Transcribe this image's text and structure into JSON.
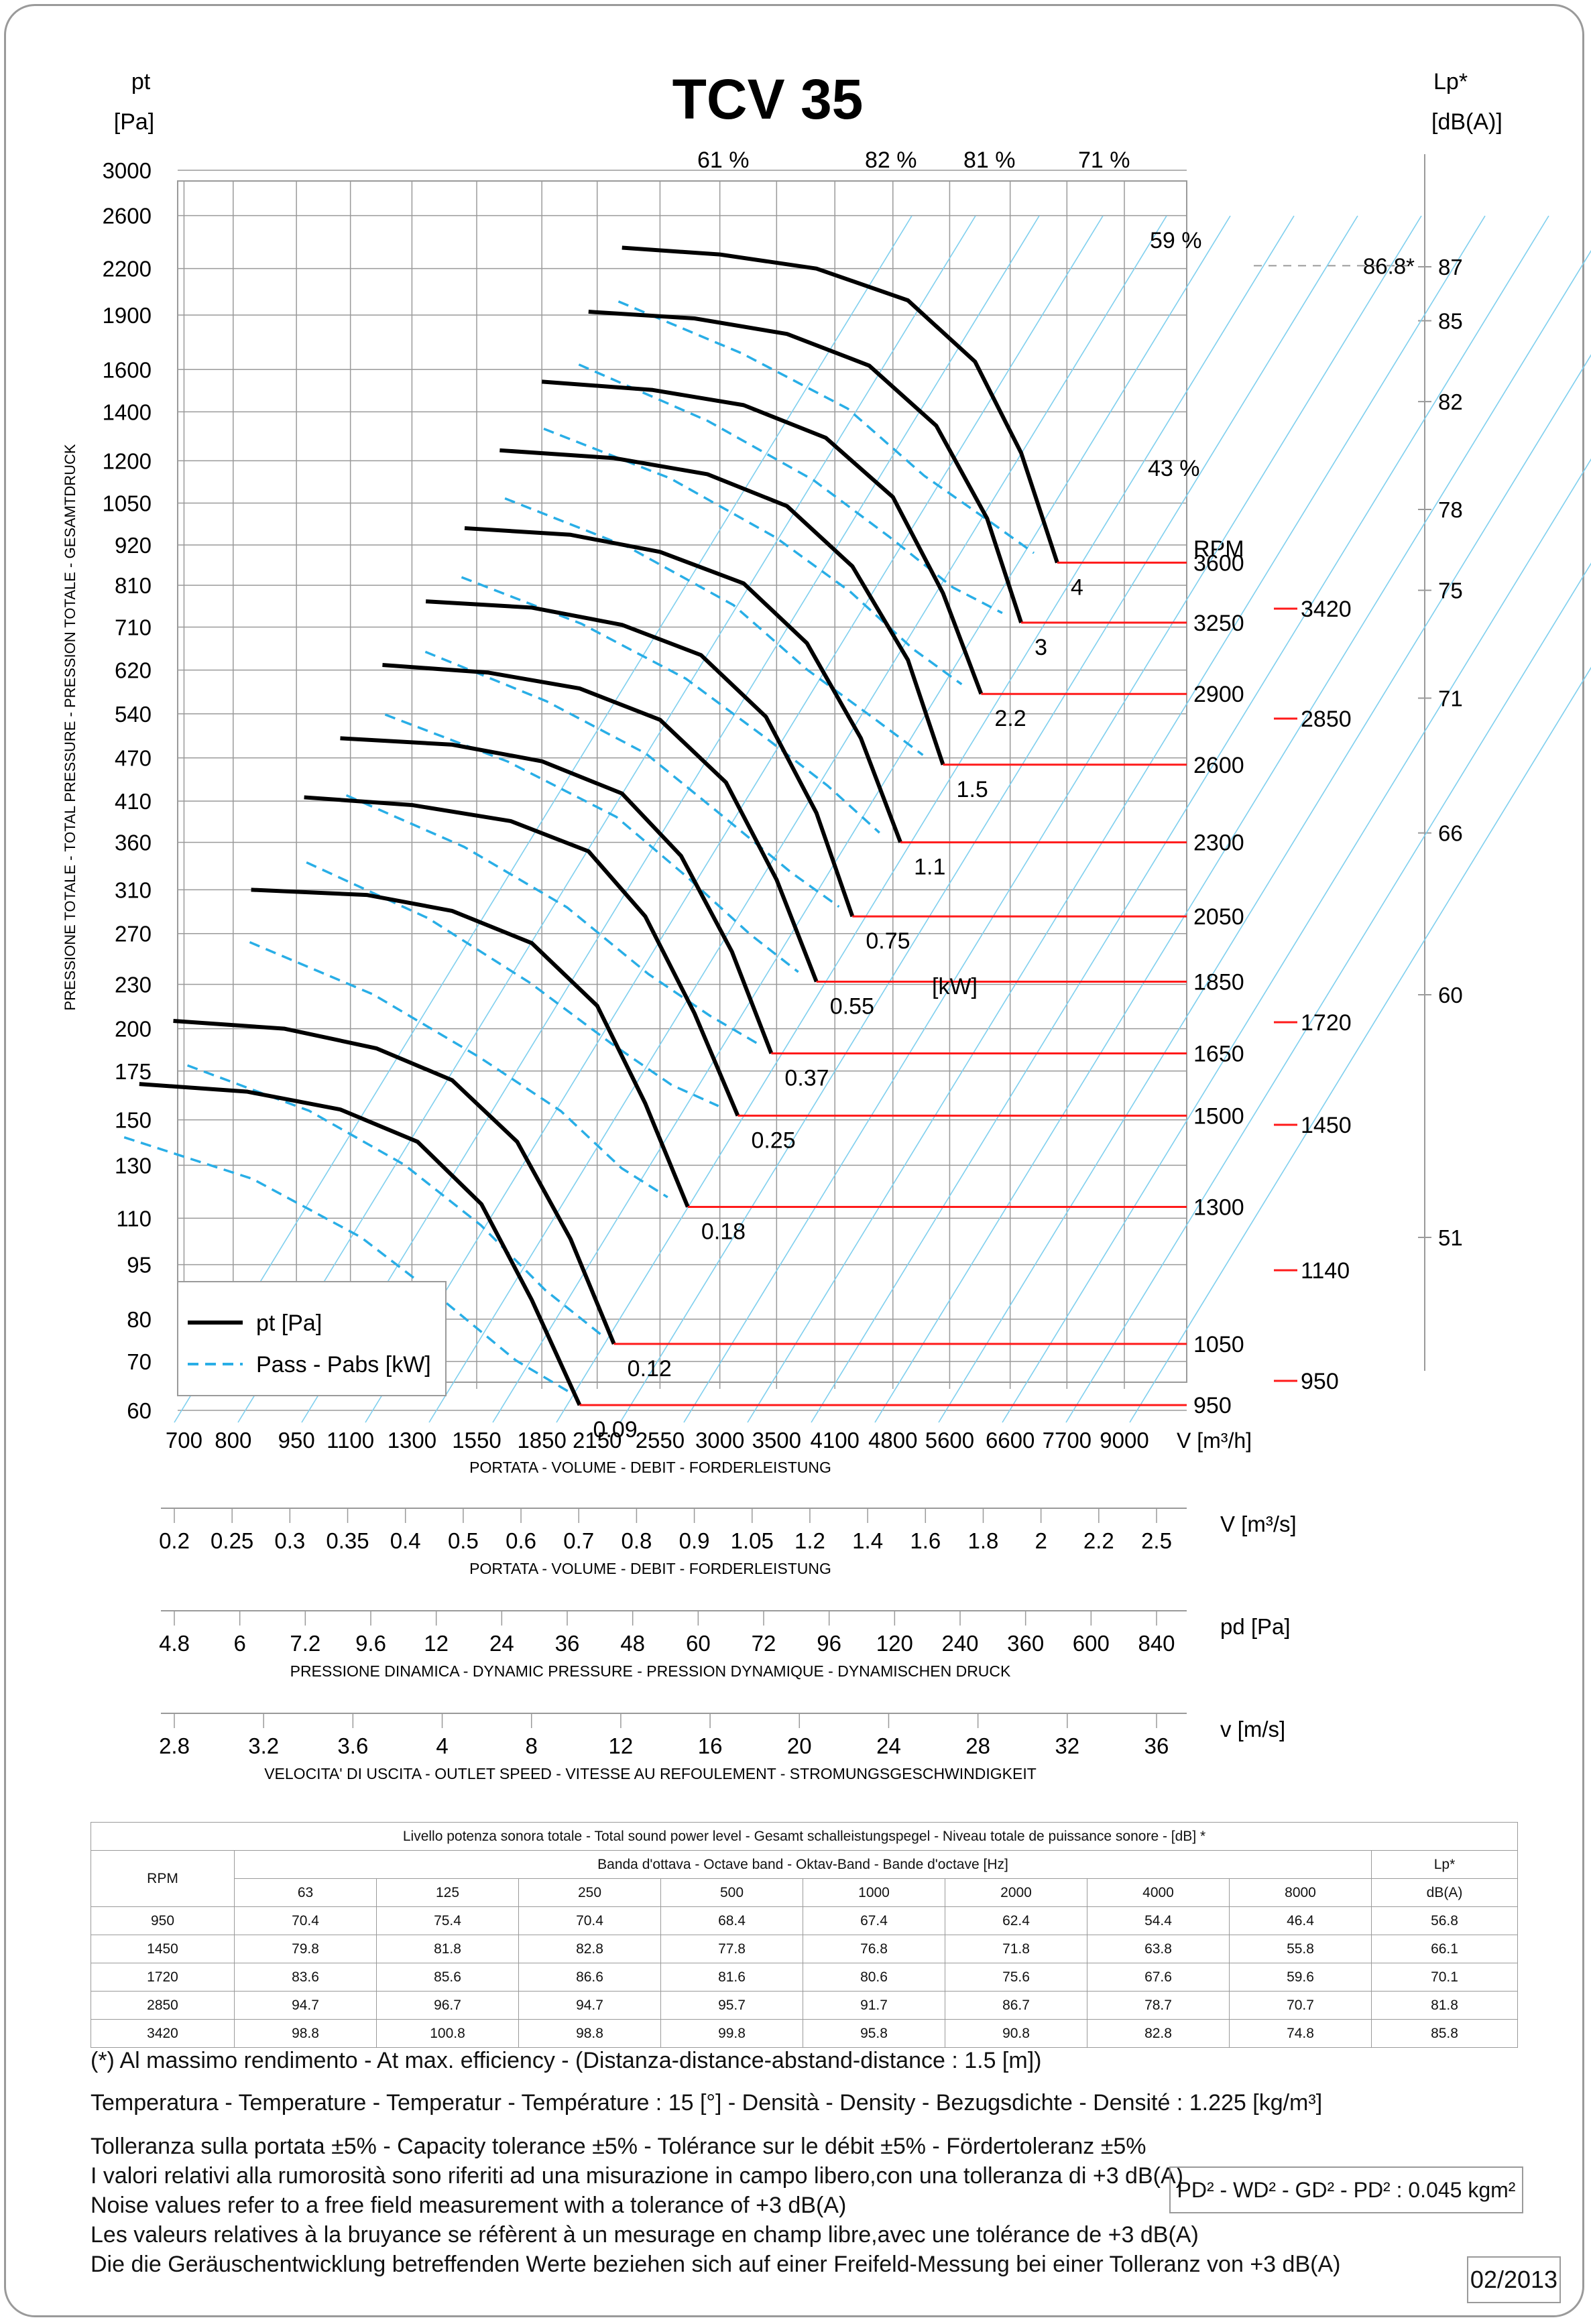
{
  "chart_data": {
    "type": "line",
    "title": "TCV 35",
    "y_axis": {
      "label": "pt",
      "unit": "[Pa]",
      "scale": "log",
      "ticks": [
        "3000",
        "2600",
        "2200",
        "1900",
        "1600",
        "1400",
        "1200",
        "1050",
        "920",
        "810",
        "710",
        "620",
        "540",
        "470",
        "410",
        "360",
        "310",
        "270",
        "230",
        "200",
        "175",
        "150",
        "130",
        "110",
        "95",
        "80",
        "70",
        "60"
      ]
    },
    "y_axis_side_label": "PRESSIONE TOTALE - TOTAL PRESSURE - PRESSION TOTALE - GESAMTDRUCK",
    "x_axis": {
      "label": "V [m³/h]",
      "scale": "log",
      "ticks": [
        "700",
        "800",
        "950",
        "1100",
        "1300",
        "1550",
        "1850",
        "2150",
        "2550",
        "3000",
        "3500",
        "4100",
        "4800",
        "5600",
        "6600",
        "7700",
        "9000"
      ],
      "caption": "PORTATA - VOLUME - DEBIT - FORDERLEISTUNG"
    },
    "lp_axis": {
      "label": "Lp*",
      "unit": "[dB(A)]",
      "ticks": [
        "87",
        "85",
        "82",
        "78",
        "75",
        "71",
        "66",
        "60",
        "51"
      ],
      "max_mark": "86.8*"
    },
    "efficiency_labels": [
      "61 %",
      "82 %",
      "81 %",
      "71 %",
      "59 %",
      "43 %"
    ],
    "rpm_header": "RPM",
    "rpm_curves": [
      "3600",
      "3250",
      "2900",
      "2600",
      "2300",
      "2050",
      "1850",
      "1650",
      "1500",
      "1300",
      "1050",
      "950"
    ],
    "rpm_sound_levels": [
      "3420",
      "2850",
      "1720",
      "1450",
      "1140",
      "950"
    ],
    "power_labels": [
      "4",
      "3",
      "2.2",
      "1.5",
      "1.1",
      "0.75",
      "0.55",
      "[kW]",
      "0.37",
      "0.25",
      "0.18",
      "0.12",
      "0.09"
    ],
    "curves": [
      {
        "rpm": 3600,
        "kw": "4",
        "pt": [
          [
            2300,
            2350
          ],
          [
            3000,
            2300
          ],
          [
            3900,
            2200
          ],
          [
            5000,
            1990
          ],
          [
            6000,
            1640
          ],
          [
            6800,
            1230
          ],
          [
            7500,
            870
          ]
        ],
        "pw": [
          [
            2450,
            1.8
          ],
          [
            3400,
            2.35
          ],
          [
            4500,
            2.85
          ],
          [
            5500,
            3.4
          ],
          [
            6500,
            3.75
          ],
          [
            7300,
            4.0
          ]
        ]
      },
      {
        "rpm": 3250,
        "kw": "3",
        "pt": [
          [
            2100,
            1920
          ],
          [
            2800,
            1880
          ],
          [
            3600,
            1790
          ],
          [
            4500,
            1620
          ],
          [
            5400,
            1340
          ],
          [
            6200,
            1000
          ],
          [
            6800,
            720
          ]
        ],
        "pw": [
          [
            2200,
            1.35
          ],
          [
            3100,
            1.8
          ],
          [
            4100,
            2.2
          ],
          [
            5000,
            2.55
          ],
          [
            5900,
            2.85
          ],
          [
            6700,
            3.0
          ]
        ]
      },
      {
        "rpm": 2900,
        "kw": "2.2",
        "pt": [
          [
            1850,
            1540
          ],
          [
            2500,
            1500
          ],
          [
            3200,
            1430
          ],
          [
            4000,
            1290
          ],
          [
            4800,
            1070
          ],
          [
            5500,
            790
          ],
          [
            6100,
            575
          ]
        ],
        "pw": [
          [
            2000,
            0.95
          ],
          [
            2800,
            1.25
          ],
          [
            3700,
            1.55
          ],
          [
            4500,
            1.8
          ],
          [
            5300,
            2.05
          ],
          [
            6000,
            2.2
          ]
        ]
      },
      {
        "rpm": 2600,
        "kw": "1.5",
        "pt": [
          [
            1650,
            1240
          ],
          [
            2250,
            1210
          ],
          [
            2900,
            1150
          ],
          [
            3600,
            1040
          ],
          [
            4300,
            860
          ],
          [
            5000,
            640
          ],
          [
            5500,
            460
          ]
        ],
        "pw": [
          [
            1800,
            0.65
          ],
          [
            2500,
            0.85
          ],
          [
            3300,
            1.05
          ],
          [
            4000,
            1.25
          ],
          [
            4800,
            1.4
          ],
          [
            5400,
            1.5
          ]
        ]
      },
      {
        "rpm": 2300,
        "kw": "1.1",
        "pt": [
          [
            1500,
            970
          ],
          [
            2000,
            950
          ],
          [
            2550,
            900
          ],
          [
            3200,
            815
          ],
          [
            3800,
            675
          ],
          [
            4400,
            500
          ],
          [
            4900,
            360
          ]
        ],
        "pw": [
          [
            1600,
            0.48
          ],
          [
            2200,
            0.62
          ],
          [
            2900,
            0.76
          ],
          [
            3600,
            0.9
          ],
          [
            4200,
            1.0
          ],
          [
            4800,
            1.1
          ]
        ]
      },
      {
        "rpm": 2050,
        "kw": "0.75",
        "pt": [
          [
            1350,
            770
          ],
          [
            1800,
            755
          ],
          [
            2300,
            715
          ],
          [
            2850,
            650
          ],
          [
            3400,
            535
          ],
          [
            3900,
            395
          ],
          [
            4300,
            285
          ]
        ],
        "pw": [
          [
            1450,
            0.33
          ],
          [
            2000,
            0.43
          ],
          [
            2600,
            0.52
          ],
          [
            3200,
            0.62
          ],
          [
            3800,
            0.7
          ],
          [
            4300,
            0.75
          ]
        ]
      },
      {
        "rpm": 1850,
        "kw": "0.55",
        "pt": [
          [
            1200,
            630
          ],
          [
            1600,
            615
          ],
          [
            2050,
            585
          ],
          [
            2550,
            530
          ],
          [
            3050,
            435
          ],
          [
            3500,
            320
          ],
          [
            3900,
            232
          ]
        ],
        "pw": [
          [
            1300,
            0.24
          ],
          [
            1800,
            0.31
          ],
          [
            2400,
            0.38
          ],
          [
            2900,
            0.45
          ],
          [
            3400,
            0.51
          ],
          [
            3850,
            0.55
          ]
        ]
      },
      {
        "rpm": 1650,
        "kw": "0.37",
        "pt": [
          [
            1070,
            500
          ],
          [
            1450,
            490
          ],
          [
            1850,
            465
          ],
          [
            2300,
            420
          ],
          [
            2700,
            345
          ],
          [
            3100,
            255
          ],
          [
            3450,
            185
          ]
        ],
        "pw": [
          [
            1170,
            0.17
          ],
          [
            1600,
            0.22
          ],
          [
            2100,
            0.27
          ],
          [
            2600,
            0.32
          ],
          [
            3050,
            0.35
          ],
          [
            3450,
            0.37
          ]
        ]
      },
      {
        "rpm": 1500,
        "kw": "0.25",
        "pt": [
          [
            970,
            415
          ],
          [
            1300,
            405
          ],
          [
            1700,
            385
          ],
          [
            2100,
            350
          ],
          [
            2450,
            285
          ],
          [
            2800,
            210
          ],
          [
            3150,
            152
          ]
        ],
        "pw": [
          [
            1050,
            0.12
          ],
          [
            1450,
            0.155
          ],
          [
            1900,
            0.19
          ],
          [
            2350,
            0.22
          ],
          [
            2750,
            0.24
          ],
          [
            3100,
            0.25
          ]
        ]
      },
      {
        "rpm": 1300,
        "kw": "0.18",
        "pt": [
          [
            840,
            310
          ],
          [
            1150,
            305
          ],
          [
            1450,
            290
          ],
          [
            1800,
            262
          ],
          [
            2150,
            215
          ],
          [
            2450,
            158
          ],
          [
            2750,
            114
          ]
        ],
        "pw": [
          [
            900,
            0.08
          ],
          [
            1250,
            0.105
          ],
          [
            1650,
            0.13
          ],
          [
            2050,
            0.15
          ],
          [
            2400,
            0.17
          ],
          [
            2700,
            0.18
          ]
        ]
      },
      {
        "rpm": 1050,
        "kw": "0.12",
        "pt": [
          [
            680,
            205
          ],
          [
            920,
            200
          ],
          [
            1180,
            188
          ],
          [
            1450,
            170
          ],
          [
            1730,
            140
          ],
          [
            2000,
            103
          ],
          [
            2250,
            74
          ]
        ],
        "pw": [
          [
            760,
            0.05
          ],
          [
            1050,
            0.065
          ],
          [
            1350,
            0.08
          ],
          [
            1650,
            0.095
          ],
          [
            1950,
            0.11
          ],
          [
            2250,
            0.12
          ]
        ]
      },
      {
        "rpm": 950,
        "kw": "0.09",
        "pt": [
          [
            620,
            168
          ],
          [
            830,
            164
          ],
          [
            1070,
            155
          ],
          [
            1320,
            140
          ],
          [
            1570,
            115
          ],
          [
            1800,
            85
          ],
          [
            2050,
            61
          ]
        ],
        "pw": [
          [
            640,
            0.04
          ],
          [
            900,
            0.05
          ],
          [
            1200,
            0.062
          ],
          [
            1500,
            0.074
          ],
          [
            1800,
            0.084
          ],
          [
            2100,
            0.09
          ]
        ]
      }
    ],
    "legend": [
      "pt [Pa]",
      "Pass - Pabs [kW]"
    ]
  },
  "scales": [
    {
      "name": "flow-m3s",
      "unit": "V  [m³/s]",
      "caption": "PORTATA - VOLUME - DEBIT - FORDERLEISTUNG",
      "ticks": [
        "0.2",
        "0.25",
        "0.3",
        "0.35",
        "0.4",
        "0.5",
        "0.6",
        "0.7",
        "0.8",
        "0.9",
        "1.05",
        "1.2",
        "1.4",
        "1.6",
        "1.8",
        "2",
        "2.2",
        "2.5"
      ]
    },
    {
      "name": "dynamic-pressure",
      "unit": "pd  [Pa]",
      "caption": "PRESSIONE DINAMICA - DYNAMIC PRESSURE - PRESSION DYNAMIQUE - DYNAMISCHEN DRUCK",
      "ticks": [
        "4.8",
        "6",
        "7.2",
        "9.6",
        "12",
        "24",
        "36",
        "48",
        "60",
        "72",
        "96",
        "120",
        "240",
        "360",
        "600",
        "840"
      ]
    },
    {
      "name": "outlet-speed",
      "unit": "v  [m/s]",
      "caption": "VELOCITA' DI USCITA - OUTLET SPEED - VITESSE AU REFOULEMENT - STROMUNGSGESCHWINDIGKEIT",
      "ticks": [
        "2.8",
        "3.2",
        "3.6",
        "4",
        "8",
        "12",
        "16",
        "20",
        "24",
        "28",
        "32",
        "36"
      ]
    }
  ],
  "sound_table": {
    "title": "Livello potenza sonora totale - Total sound power level - Gesamt schalleistungspegel - Niveau totale de puissance sonore - [dB]   *",
    "band_header": "Banda d'ottava - Octave band - Oktav-Band - Bande d'octave [Hz]",
    "rpm_header": "RPM",
    "lp_header": "Lp*",
    "lp_unit": "dB(A)",
    "bands": [
      "63",
      "125",
      "250",
      "500",
      "1000",
      "2000",
      "4000",
      "8000"
    ],
    "rows": [
      {
        "rpm": "950",
        "values": [
          "70.4",
          "75.4",
          "70.4",
          "68.4",
          "67.4",
          "62.4",
          "54.4",
          "46.4"
        ],
        "lp": "56.8"
      },
      {
        "rpm": "1450",
        "values": [
          "79.8",
          "81.8",
          "82.8",
          "77.8",
          "76.8",
          "71.8",
          "63.8",
          "55.8"
        ],
        "lp": "66.1"
      },
      {
        "rpm": "1720",
        "values": [
          "83.6",
          "85.6",
          "86.6",
          "81.6",
          "80.6",
          "75.6",
          "67.6",
          "59.6"
        ],
        "lp": "70.1"
      },
      {
        "rpm": "2850",
        "values": [
          "94.7",
          "96.7",
          "94.7",
          "95.7",
          "91.7",
          "86.7",
          "78.7",
          "70.7"
        ],
        "lp": "81.8"
      },
      {
        "rpm": "3420",
        "values": [
          "98.8",
          "100.8",
          "98.8",
          "99.8",
          "95.8",
          "90.8",
          "82.8",
          "74.8"
        ],
        "lp": "85.8"
      }
    ]
  },
  "notes": {
    "efficiency": "(*) Al massimo rendimento - At max. efficiency - (Distanza-distance-abstand-distance : 1.5 [m])",
    "conditions": "Temperatura - Temperature - Temperatur - Température : 15 [°]  -  Densità - Density - Bezugsdichte - Densité : 1.225 [kg/m³]",
    "tolerance": "Tolleranza sulla portata  ±5% - Capacity tolerance ±5% - Tolérance sur le débit ±5% - Fördertoleranz ±5%",
    "noise_it": "I valori relativi alla rumorosità sono riferiti ad una misurazione in campo libero,con una tolleranza di +3 dB(A)",
    "noise_en": "Noise values refer to a free field measurement with a tolerance of +3 dB(A)",
    "noise_fr": "Les valeurs relatives à la bruyance se réfèrent à un mesurage en champ libre,avec une tolérance de +3 dB(A)",
    "noise_de": "Die die Geräuschentwicklung betreffenden Werte beziehen sich auf einer Freifeld-Messung bei einer Tolleranz von +3 dB(A)",
    "inertia": "PD² -  WD² - GD² -  PD²  :  0.045 kgm²",
    "date": "02/2013"
  },
  "colors": {
    "pressure_curve": "#000000",
    "power_curve": "#29aee6",
    "rpm_line": "#ff1a1a",
    "grid": "#9a9a9a",
    "efficiency_line": "#7fcfee"
  }
}
